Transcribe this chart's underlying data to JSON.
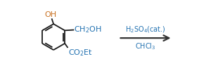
{
  "bg_color": "#ffffff",
  "ring_color": "#1a1a1a",
  "text_oh_color": "#c87020",
  "text_ch2oh_color": "#2070b0",
  "text_co2et_color": "#2070b0",
  "text_reagent_color": "#2070b0",
  "text_solvent_color": "#2070b0",
  "arrow_color": "#333333",
  "reagent_line1": "H$_2$SO$_4$(cat.)",
  "reagent_line2": "CHCl$_3$",
  "label_OH": "OH",
  "label_CH2OH": "CH$_2$OH",
  "label_CO2Et": "CO$_2$Et",
  "fig_width": 2.83,
  "fig_height": 1.11,
  "dpi": 100
}
